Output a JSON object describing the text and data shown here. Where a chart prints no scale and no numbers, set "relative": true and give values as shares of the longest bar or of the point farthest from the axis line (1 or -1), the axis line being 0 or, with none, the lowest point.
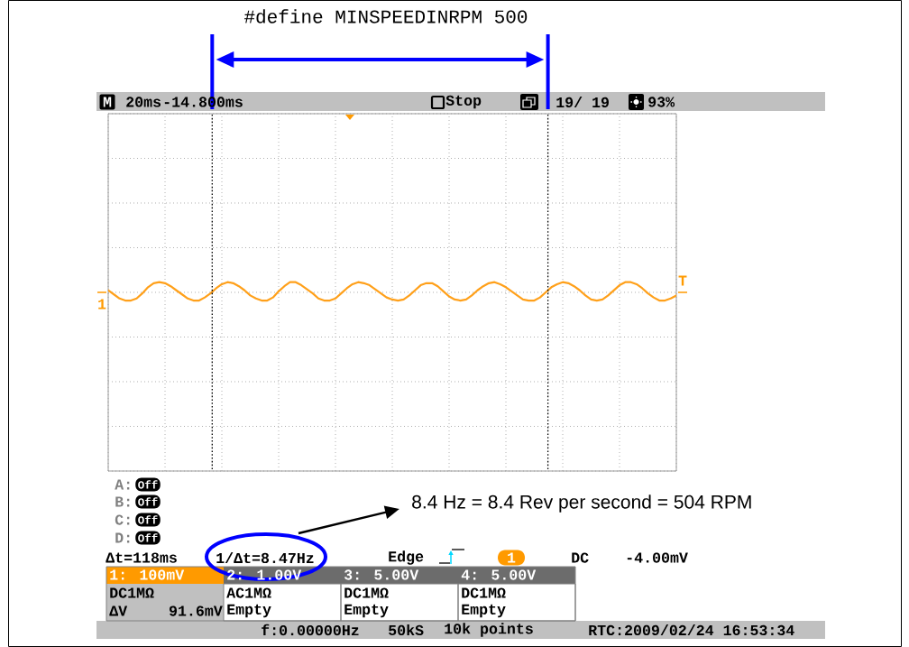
{
  "chart_data": {
    "type": "line",
    "title": "#define MINSPEEDINRPM 500",
    "categories": [
      null,
      null,
      null,
      null,
      null,
      null,
      null,
      null,
      null,
      null,
      null,
      null,
      null,
      null,
      null,
      null,
      null,
      null,
      null,
      null,
      null,
      null,
      null,
      null,
      null,
      null,
      null,
      null,
      null,
      null,
      null,
      null,
      null,
      null,
      null,
      null,
      null,
      null,
      null,
      null,
      null,
      null,
      null,
      null,
      null,
      null,
      null,
      null,
      null,
      null,
      null,
      null,
      null,
      null,
      null,
      null,
      null,
      null,
      null,
      null,
      null,
      null,
      null,
      null,
      null,
      null,
      null,
      null,
      null,
      null,
      null,
      null,
      null,
      null,
      null,
      null,
      null,
      null,
      null,
      null,
      null,
      null,
      null,
      null,
      null,
      null,
      null,
      null,
      null,
      null,
      null,
      null,
      null,
      null,
      null,
      null,
      null,
      null,
      null,
      null,
      null
    ],
    "values": [
      0.2,
      -0.2,
      -0.6,
      -0.8,
      -0.8,
      -0.6,
      -0.1,
      0.5,
      0.9,
      1.0,
      0.9,
      0.6,
      0.2,
      -0.2,
      -0.6,
      -0.8,
      -0.8,
      -0.5,
      -0.1,
      0.4,
      0.8,
      1.0,
      0.9,
      0.6,
      0.2,
      -0.3,
      -0.6,
      -0.8,
      -0.8,
      -0.5,
      0.1,
      0.6,
      1.0,
      1.0,
      0.7,
      0.3,
      -0.1,
      -0.6,
      -0.8,
      -0.8,
      -0.6,
      -0.1,
      0.4,
      0.8,
      1.0,
      0.9,
      0.7,
      0.3,
      -0.1,
      -0.5,
      -0.7,
      -0.8,
      -0.7,
      -0.3,
      0.2,
      0.7,
      0.9,
      0.9,
      0.6,
      0.1,
      -0.4,
      -0.7,
      -0.8,
      -0.7,
      -0.3,
      0.2,
      0.6,
      0.9,
      1.0,
      0.8,
      0.5,
      0.1,
      -0.3,
      -0.7,
      -0.8,
      -0.8,
      -0.5,
      0.0,
      0.5,
      0.8,
      1.0,
      0.9,
      0.6,
      0.2,
      -0.3,
      -0.7,
      -0.8,
      -0.7,
      -0.3,
      0.2,
      0.7,
      1.0,
      1.0,
      0.8,
      0.4,
      -0.1,
      -0.5,
      -0.8,
      -0.8,
      -0.6,
      -0.3
    ],
    "color": "#ffa01a",
    "relative": true,
    "grid": true,
    "marker": "none",
    "line_style": "solid",
    "annotations": [
      "M",
      "20ms",
      "-14.800ms",
      "Stop",
      "19/ 19",
      "93%",
      "1",
      "T",
      "A:",
      "Off",
      "B:",
      "Off",
      "C:",
      "Off",
      "D:",
      "Off",
      "Δt=118ms",
      "1/Δt=8.47Hz",
      "Edge",
      "1",
      "DC",
      "-4.00mV",
      "1: 100mV",
      "2: 1.00V",
      "3: 5.00V",
      "4: 5.00V",
      "DC1MΩ",
      "AC1MΩ",
      "DC1MΩ",
      "DC1MΩ",
      "ΔV",
      "91.6mV",
      "Empty",
      "Empty",
      "Empty",
      "f:0.00000Hz",
      "50kS",
      "10k points",
      "RTC:2009/02/24 16:53:34",
      "8.4 Hz = 8.4 Rev per second = 504 RPM"
    ]
  }
}
